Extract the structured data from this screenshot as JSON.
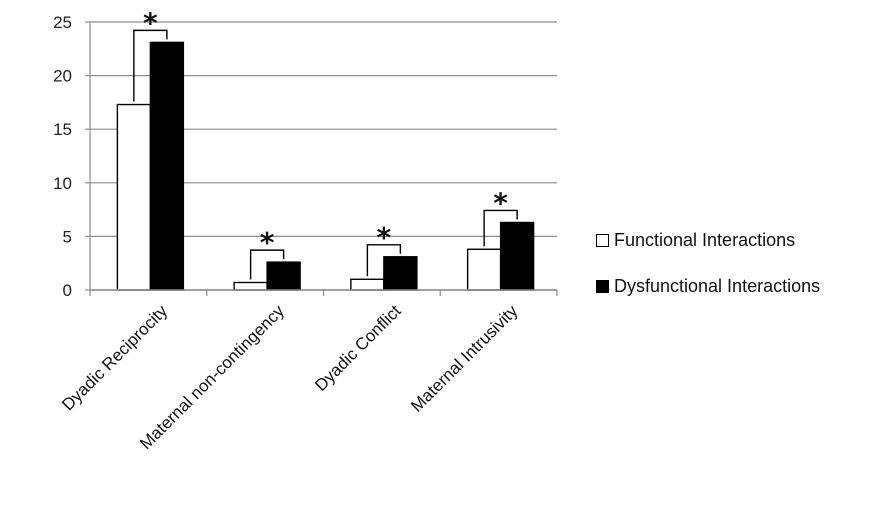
{
  "chart_data": {
    "type": "bar",
    "title": "",
    "xlabel": "",
    "ylabel": "",
    "categories": [
      "Dyadic Reciprocity",
      "Maternal non-contingency",
      "Dyadic Conflict",
      "Maternal Intrusivity"
    ],
    "series": [
      {
        "name": "Functional Interactions",
        "color": "#ffffff",
        "values": [
          17.3,
          0.7,
          1.0,
          3.8
        ]
      },
      {
        "name": "Dysfunctional Interactions",
        "color": "#000000",
        "values": [
          23.1,
          2.6,
          3.1,
          6.3
        ]
      }
    ],
    "ylim": [
      0,
      25
    ],
    "yticks": [
      "0",
      "5",
      "10",
      "15",
      "20",
      "25"
    ],
    "grid": true,
    "legend_position": "right",
    "annotations": [
      "*",
      "*",
      "*",
      "*"
    ]
  }
}
